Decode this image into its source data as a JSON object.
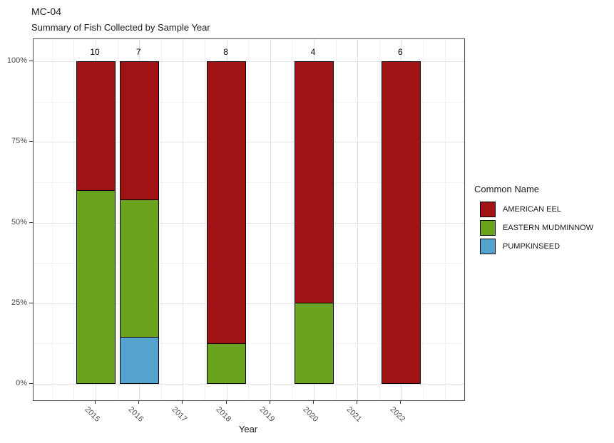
{
  "header": {
    "title": "MC-04",
    "subtitle": "Summary of Fish Collected by Sample Year"
  },
  "chart_data": {
    "type": "bar",
    "variant": "stacked-percent",
    "title": "MC-04",
    "subtitle": "Summary of Fish Collected by Sample Year",
    "xlabel": "Year",
    "ylabel": "",
    "grid": true,
    "categories": [
      "2015",
      "2016",
      "2017",
      "2018",
      "2019",
      "2020",
      "2021",
      "2022"
    ],
    "y_axis": {
      "range_pct": [
        0,
        100
      ],
      "major_ticks": [
        {
          "label": "0%",
          "pct": 0
        },
        {
          "label": "25%",
          "pct": 25
        },
        {
          "label": "50%",
          "pct": 50
        },
        {
          "label": "75%",
          "pct": 75
        },
        {
          "label": "100%",
          "pct": 100
        }
      ],
      "minor_pcts": [
        12.5,
        37.5,
        62.5,
        87.5
      ]
    },
    "legend": {
      "title": "Common Name",
      "position": "right",
      "items": [
        {
          "label": "AMERICAN EEL",
          "color": "#A01213"
        },
        {
          "label": "EASTERN MUDMINNOW",
          "color": "#6AA41F"
        },
        {
          "label": "PUMPKINSEED",
          "color": "#55A4CF"
        }
      ]
    },
    "colors": {
      "AMERICAN EEL": "#A01213",
      "EASTERN MUDMINNOW": "#6AA41F",
      "PUMPKINSEED": "#55A4CF"
    },
    "bars": [
      {
        "year": "2015",
        "count_label": "10",
        "segments": [
          {
            "species": "EASTERN MUDMINNOW",
            "pct": 60
          },
          {
            "species": "AMERICAN EEL",
            "pct": 40
          }
        ]
      },
      {
        "year": "2016",
        "count_label": "7",
        "segments": [
          {
            "species": "PUMPKINSEED",
            "pct": 14.3
          },
          {
            "species": "EASTERN MUDMINNOW",
            "pct": 42.9
          },
          {
            "species": "AMERICAN EEL",
            "pct": 42.8
          }
        ]
      },
      {
        "year": "2017",
        "count_label": "",
        "segments": []
      },
      {
        "year": "2018",
        "count_label": "8",
        "segments": [
          {
            "species": "EASTERN MUDMINNOW",
            "pct": 12.5
          },
          {
            "species": "AMERICAN EEL",
            "pct": 87.5
          }
        ]
      },
      {
        "year": "2019",
        "count_label": "",
        "segments": []
      },
      {
        "year": "2020",
        "count_label": "4",
        "segments": [
          {
            "species": "EASTERN MUDMINNOW",
            "pct": 25
          },
          {
            "species": "AMERICAN EEL",
            "pct": 75
          }
        ]
      },
      {
        "year": "2021",
        "count_label": "",
        "segments": []
      },
      {
        "year": "2022",
        "count_label": "6",
        "segments": [
          {
            "species": "AMERICAN EEL",
            "pct": 100
          }
        ]
      }
    ]
  }
}
